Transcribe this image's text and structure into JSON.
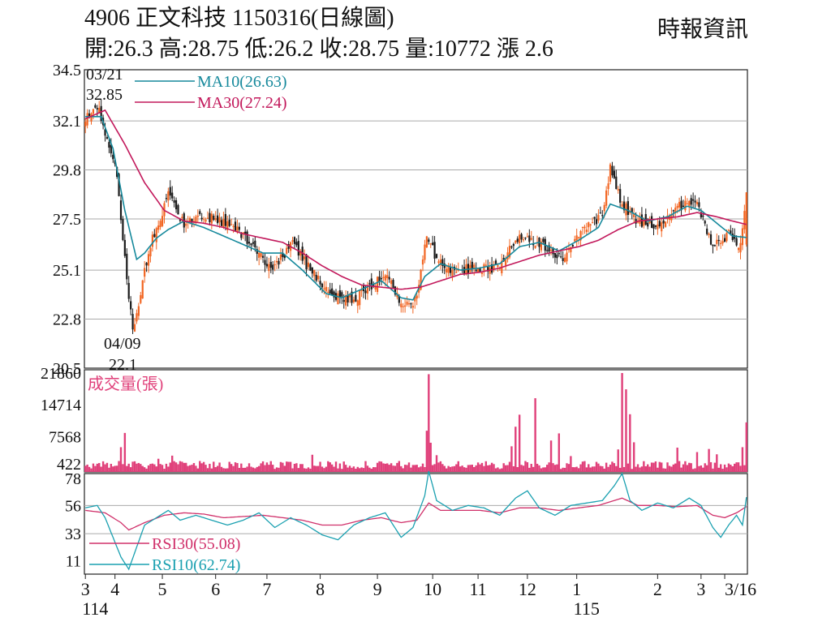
{
  "header": {
    "title": "4906  正文科技 1150316(日線圖)",
    "stats": "開:26.3 高:28.75 低:26.2 收:28.75 量:10772 漲 2.6",
    "source": "時報資訊"
  },
  "colors": {
    "up": "#f26522",
    "down": "#1a1a1a",
    "ma10": "#16899c",
    "ma30": "#c2185b",
    "volume": "#e0407a",
    "rsi10": "#1aa0b0",
    "rsi30": "#d0306a",
    "grid": "#aaaaaa"
  },
  "chart_data": [
    {
      "type": "candlestick",
      "name": "price",
      "y_ticks": [
        "34.5",
        "32.1",
        "29.8",
        "27.5",
        "25.1",
        "22.8",
        "20.5"
      ],
      "ylim": [
        20.5,
        34.5
      ],
      "legend": [
        {
          "label": "MA10(26.63)",
          "color_key": "ma10"
        },
        {
          "label": "MA30(27.24)",
          "color_key": "ma30"
        }
      ],
      "annotations": [
        {
          "date": "03/21",
          "value": "32.85",
          "kind": "high"
        },
        {
          "date": "04/09",
          "value": "22.1",
          "kind": "low"
        }
      ],
      "key_points": [
        {
          "x": 0,
          "close": 32.3
        },
        {
          "x": 6,
          "close": 32.85
        },
        {
          "x": 16,
          "close": 29.5
        },
        {
          "x": 24,
          "close": 22.1
        },
        {
          "x": 32,
          "close": 26.0
        },
        {
          "x": 42,
          "close": 28.6
        },
        {
          "x": 50,
          "close": 27.3
        },
        {
          "x": 60,
          "close": 27.6
        },
        {
          "x": 72,
          "close": 27.3
        },
        {
          "x": 84,
          "close": 26.4
        },
        {
          "x": 94,
          "close": 25.2
        },
        {
          "x": 105,
          "close": 26.3
        },
        {
          "x": 115,
          "close": 25.0
        },
        {
          "x": 126,
          "close": 23.8
        },
        {
          "x": 135,
          "close": 23.7
        },
        {
          "x": 143,
          "close": 24.3
        },
        {
          "x": 152,
          "close": 24.9
        },
        {
          "x": 162,
          "close": 23.3
        },
        {
          "x": 168,
          "close": 23.8
        },
        {
          "x": 173,
          "close": 26.9
        },
        {
          "x": 178,
          "close": 25.6
        },
        {
          "x": 186,
          "close": 25.0
        },
        {
          "x": 195,
          "close": 25.2
        },
        {
          "x": 208,
          "close": 25.2
        },
        {
          "x": 220,
          "close": 26.6
        },
        {
          "x": 232,
          "close": 26.3
        },
        {
          "x": 242,
          "close": 25.6
        },
        {
          "x": 252,
          "close": 26.9
        },
        {
          "x": 262,
          "close": 27.6
        },
        {
          "x": 266,
          "close": 29.9
        },
        {
          "x": 272,
          "close": 28.2
        },
        {
          "x": 280,
          "close": 27.4
        },
        {
          "x": 290,
          "close": 27.2
        },
        {
          "x": 300,
          "close": 28.1
        },
        {
          "x": 310,
          "close": 28.3
        },
        {
          "x": 318,
          "close": 26.2
        },
        {
          "x": 326,
          "close": 26.8
        },
        {
          "x": 332,
          "close": 26.15
        },
        {
          "x": 335,
          "close": 28.75
        }
      ],
      "ma10": [
        [
          0,
          32.3
        ],
        [
          8,
          32.3
        ],
        [
          14,
          30.8
        ],
        [
          20,
          27.9
        ],
        [
          26,
          25.6
        ],
        [
          30,
          25.9
        ],
        [
          36,
          26.6
        ],
        [
          42,
          27.0
        ],
        [
          50,
          27.4
        ],
        [
          60,
          27.1
        ],
        [
          70,
          26.7
        ],
        [
          80,
          26.3
        ],
        [
          90,
          25.9
        ],
        [
          100,
          25.9
        ],
        [
          110,
          25.1
        ],
        [
          122,
          24.0
        ],
        [
          130,
          23.8
        ],
        [
          140,
          24.2
        ],
        [
          150,
          24.6
        ],
        [
          160,
          23.8
        ],
        [
          166,
          23.7
        ],
        [
          172,
          24.8
        ],
        [
          180,
          25.4
        ],
        [
          190,
          25.1
        ],
        [
          200,
          25.2
        ],
        [
          210,
          25.4
        ],
        [
          220,
          26.2
        ],
        [
          230,
          26.4
        ],
        [
          240,
          26.0
        ],
        [
          250,
          26.5
        ],
        [
          260,
          27.1
        ],
        [
          266,
          28.2
        ],
        [
          275,
          27.9
        ],
        [
          285,
          27.4
        ],
        [
          295,
          27.6
        ],
        [
          305,
          28.1
        ],
        [
          312,
          27.9
        ],
        [
          320,
          27.3
        ],
        [
          328,
          26.7
        ],
        [
          335,
          26.63
        ]
      ],
      "ma30": [
        [
          0,
          32.2
        ],
        [
          10,
          32.6
        ],
        [
          20,
          31.0
        ],
        [
          30,
          29.2
        ],
        [
          40,
          27.9
        ],
        [
          50,
          27.4
        ],
        [
          60,
          27.3
        ],
        [
          70,
          27.1
        ],
        [
          80,
          26.8
        ],
        [
          90,
          26.6
        ],
        [
          100,
          26.4
        ],
        [
          110,
          25.9
        ],
        [
          120,
          25.3
        ],
        [
          130,
          24.8
        ],
        [
          140,
          24.4
        ],
        [
          150,
          24.3
        ],
        [
          160,
          24.2
        ],
        [
          170,
          24.3
        ],
        [
          180,
          24.6
        ],
        [
          190,
          24.9
        ],
        [
          200,
          25.0
        ],
        [
          210,
          25.2
        ],
        [
          220,
          25.5
        ],
        [
          230,
          25.8
        ],
        [
          240,
          26.0
        ],
        [
          250,
          26.2
        ],
        [
          260,
          26.5
        ],
        [
          270,
          27.0
        ],
        [
          280,
          27.4
        ],
        [
          290,
          27.5
        ],
        [
          300,
          27.6
        ],
        [
          310,
          27.8
        ],
        [
          320,
          27.6
        ],
        [
          328,
          27.4
        ],
        [
          335,
          27.24
        ]
      ]
    },
    {
      "type": "bar",
      "name": "volume",
      "title": "成交量(張)",
      "y_ticks": [
        "21860",
        "14714",
        "7568",
        "422"
      ],
      "ylim": [
        422,
        21860
      ],
      "key_points": [
        [
          18,
          5200
        ],
        [
          20,
          8400
        ],
        [
          26,
          1500
        ],
        [
          37,
          2600
        ],
        [
          44,
          3300
        ],
        [
          76,
          1800
        ],
        [
          104,
          1900
        ],
        [
          115,
          3500
        ],
        [
          155,
          1600
        ],
        [
          163,
          1200
        ],
        [
          173,
          8900
        ],
        [
          174,
          21600
        ],
        [
          175,
          6200
        ],
        [
          178,
          3400
        ],
        [
          216,
          5400
        ],
        [
          218,
          9800
        ],
        [
          220,
          12500
        ],
        [
          228,
          16200
        ],
        [
          236,
          6700
        ],
        [
          240,
          8300
        ],
        [
          246,
          3200
        ],
        [
          270,
          4700
        ],
        [
          272,
          21860
        ],
        [
          274,
          18200
        ],
        [
          276,
          12600
        ],
        [
          278,
          6300
        ],
        [
          300,
          5100
        ],
        [
          310,
          4100
        ],
        [
          316,
          4800
        ],
        [
          320,
          3600
        ],
        [
          333,
          5200
        ],
        [
          335,
          10772
        ]
      ]
    },
    {
      "type": "line",
      "name": "rsi",
      "y_ticks": [
        "78",
        "56",
        "33",
        "11"
      ],
      "ylim": [
        0,
        82
      ],
      "legend": [
        {
          "label": "RSI30(55.08)",
          "color_key": "rsi30"
        },
        {
          "label": "RSI10(62.74)",
          "color_key": "rsi10"
        }
      ],
      "rsi10": [
        [
          0,
          54
        ],
        [
          6,
          56
        ],
        [
          10,
          46
        ],
        [
          14,
          30
        ],
        [
          18,
          14
        ],
        [
          22,
          4
        ],
        [
          26,
          22
        ],
        [
          30,
          40
        ],
        [
          36,
          46
        ],
        [
          42,
          52
        ],
        [
          48,
          44
        ],
        [
          56,
          48
        ],
        [
          64,
          44
        ],
        [
          72,
          40
        ],
        [
          80,
          44
        ],
        [
          88,
          50
        ],
        [
          96,
          38
        ],
        [
          104,
          46
        ],
        [
          112,
          40
        ],
        [
          120,
          32
        ],
        [
          128,
          28
        ],
        [
          136,
          40
        ],
        [
          144,
          46
        ],
        [
          152,
          50
        ],
        [
          160,
          30
        ],
        [
          166,
          38
        ],
        [
          172,
          64
        ],
        [
          174,
          84
        ],
        [
          178,
          60
        ],
        [
          186,
          52
        ],
        [
          194,
          56
        ],
        [
          202,
          54
        ],
        [
          210,
          48
        ],
        [
          218,
          62
        ],
        [
          224,
          68
        ],
        [
          230,
          54
        ],
        [
          238,
          48
        ],
        [
          246,
          56
        ],
        [
          254,
          58
        ],
        [
          262,
          60
        ],
        [
          268,
          72
        ],
        [
          272,
          82
        ],
        [
          276,
          60
        ],
        [
          282,
          52
        ],
        [
          290,
          58
        ],
        [
          298,
          54
        ],
        [
          306,
          62
        ],
        [
          312,
          56
        ],
        [
          318,
          38
        ],
        [
          322,
          30
        ],
        [
          326,
          40
        ],
        [
          330,
          48
        ],
        [
          333,
          40
        ],
        [
          335,
          62.74
        ]
      ],
      "rsi30": [
        [
          0,
          52
        ],
        [
          10,
          50
        ],
        [
          18,
          42
        ],
        [
          22,
          36
        ],
        [
          30,
          42
        ],
        [
          40,
          48
        ],
        [
          50,
          50
        ],
        [
          60,
          49
        ],
        [
          70,
          46
        ],
        [
          80,
          47
        ],
        [
          90,
          48
        ],
        [
          100,
          46
        ],
        [
          110,
          44
        ],
        [
          120,
          40
        ],
        [
          130,
          40
        ],
        [
          140,
          44
        ],
        [
          150,
          46
        ],
        [
          160,
          42
        ],
        [
          168,
          44
        ],
        [
          174,
          58
        ],
        [
          180,
          52
        ],
        [
          190,
          52
        ],
        [
          200,
          52
        ],
        [
          210,
          50
        ],
        [
          220,
          54
        ],
        [
          230,
          54
        ],
        [
          240,
          52
        ],
        [
          250,
          54
        ],
        [
          260,
          56
        ],
        [
          268,
          60
        ],
        [
          272,
          62
        ],
        [
          280,
          56
        ],
        [
          290,
          56
        ],
        [
          300,
          55
        ],
        [
          310,
          56
        ],
        [
          318,
          48
        ],
        [
          324,
          46
        ],
        [
          330,
          50
        ],
        [
          335,
          55.08
        ]
      ]
    }
  ],
  "x_axis": {
    "labels": [
      {
        "x": 0,
        "text": "3"
      },
      {
        "x": 15,
        "text": "4"
      },
      {
        "x": 39,
        "text": "5"
      },
      {
        "x": 66,
        "text": "6"
      },
      {
        "x": 92,
        "text": "7"
      },
      {
        "x": 119,
        "text": "8"
      },
      {
        "x": 148,
        "text": "9"
      },
      {
        "x": 176,
        "text": "10"
      },
      {
        "x": 199,
        "text": "11"
      },
      {
        "x": 224,
        "text": "12"
      },
      {
        "x": 249,
        "text": "1"
      },
      {
        "x": 290,
        "text": "2"
      },
      {
        "x": 312,
        "text": "3"
      },
      {
        "x": 324,
        "text": "3/16"
      }
    ],
    "year_labels": [
      {
        "x": 0,
        "text": "114"
      },
      {
        "x": 249,
        "text": "115"
      }
    ]
  }
}
